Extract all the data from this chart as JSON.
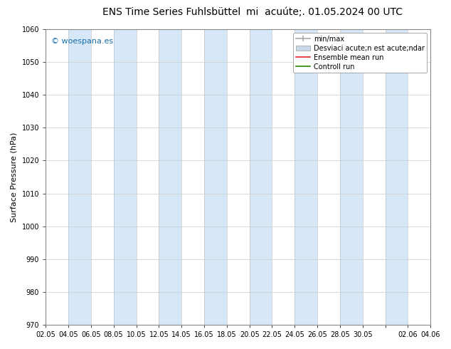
{
  "title_left": "ENS Time Series Fuhlsbüttel",
  "title_right": "mi  acuúte;. 01.05.2024 00 UTC",
  "ylabel": "Surface Pressure (hPa)",
  "ylim": [
    970,
    1060
  ],
  "yticks": [
    970,
    980,
    990,
    1000,
    1010,
    1020,
    1030,
    1040,
    1050,
    1060
  ],
  "xtick_labels": [
    "02.05",
    "04.05",
    "06.05",
    "08.05",
    "10.05",
    "12.05",
    "14.05",
    "16.05",
    "18.05",
    "20.05",
    "22.05",
    "24.05",
    "26.05",
    "28.05",
    "30.05",
    "",
    "02.06",
    "04.06"
  ],
  "background_color": "#ffffff",
  "plot_bg_color": "#ffffff",
  "band_color": "#d6e8f7",
  "watermark": "© woespana.es",
  "watermark_color": "#1a6faf",
  "legend_entry_0": "min/max",
  "legend_entry_1": "Desviaci acute;n est acute;ndar",
  "legend_entry_2": "Ensemble mean run",
  "legend_entry_3": "Controll run",
  "legend_color_0": "#aaaaaa",
  "legend_color_1": "#c8d8e8",
  "legend_color_2": "#dd2222",
  "legend_color_3": "#228800",
  "fig_width": 6.34,
  "fig_height": 4.9,
  "dpi": 100,
  "title_fontsize": 10,
  "axis_fontsize": 8,
  "tick_fontsize": 7,
  "legend_fontsize": 7,
  "ylabel_fontsize": 8
}
